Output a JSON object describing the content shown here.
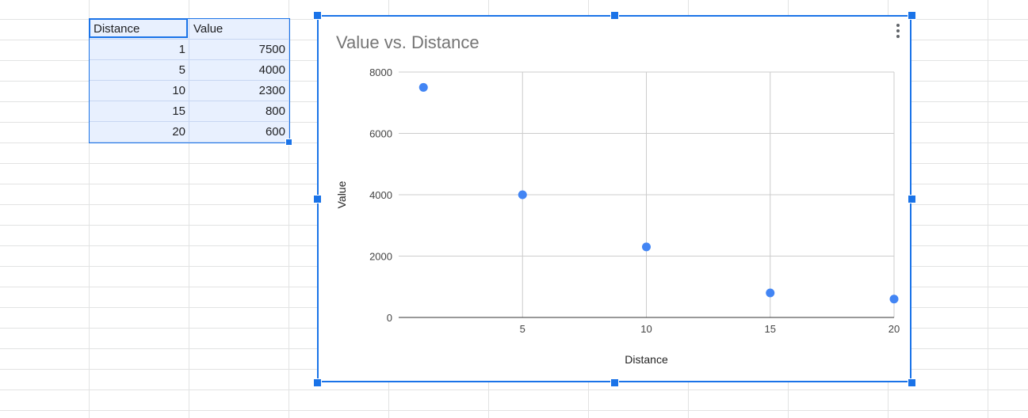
{
  "sheet": {
    "columns": [
      "Distance",
      "Value"
    ],
    "rows": [
      [
        "1",
        "7500"
      ],
      [
        "5",
        "4000"
      ],
      [
        "10",
        "2300"
      ],
      [
        "15",
        "800"
      ],
      [
        "20",
        "600"
      ]
    ]
  },
  "chart_menu_icon": "more-vert-icon",
  "colors": {
    "selection": "#1a73e8",
    "range_fill": "#e8f0fe",
    "series": "#4285f4",
    "title": "#757575"
  },
  "chart_data": {
    "type": "scatter",
    "title": "Value vs. Distance",
    "xlabel": "Distance",
    "ylabel": "Value",
    "x": [
      1,
      5,
      10,
      15,
      20
    ],
    "y": [
      7500,
      4000,
      2300,
      800,
      600
    ],
    "xlim": [
      0,
      20
    ],
    "ylim": [
      0,
      8000
    ],
    "xticks": [
      "5",
      "10",
      "15",
      "20"
    ],
    "yticks": [
      "0",
      "2000",
      "4000",
      "6000",
      "8000"
    ],
    "grid": true,
    "legend": "none"
  }
}
